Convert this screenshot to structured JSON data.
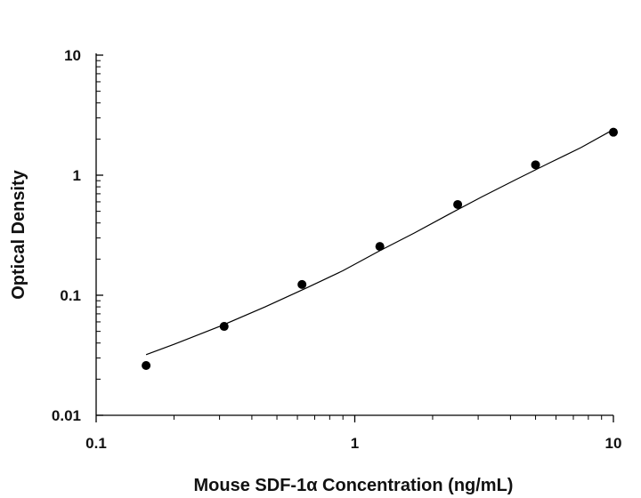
{
  "chart_data": {
    "type": "scatter",
    "xlabel": "Mouse SDF-1α Concentration (ng/mL)",
    "ylabel": "Optical Density",
    "xscale": "log",
    "yscale": "log",
    "xlim": [
      0.1,
      10
    ],
    "ylim": [
      0.01,
      10
    ],
    "x_ticks": [
      0.1,
      1,
      10
    ],
    "x_tick_labels": [
      "0.1",
      "1",
      "10"
    ],
    "y_ticks": [
      0.01,
      0.1,
      1,
      10
    ],
    "y_tick_labels": [
      "0.01",
      "0.1",
      "1",
      "10"
    ],
    "grid": false,
    "legend": "none",
    "series": [
      {
        "x": [
          0.156,
          0.3125,
          0.625,
          1.25,
          2.5,
          5,
          10
        ],
        "y": [
          0.026,
          0.055,
          0.123,
          0.255,
          0.57,
          1.22,
          2.28
        ]
      }
    ],
    "fit_curve": {
      "x": [
        0.156,
        0.2,
        0.3,
        0.45,
        0.65,
        0.9,
        1.25,
        1.7,
        2.3,
        3.1,
        4.2,
        5.6,
        7.5,
        10
      ],
      "y": [
        0.032,
        0.039,
        0.055,
        0.08,
        0.115,
        0.16,
        0.235,
        0.33,
        0.47,
        0.66,
        0.92,
        1.25,
        1.7,
        2.4
      ]
    },
    "colors": {
      "points": "#000000",
      "curve": "#000000",
      "axis": "#000000"
    }
  }
}
